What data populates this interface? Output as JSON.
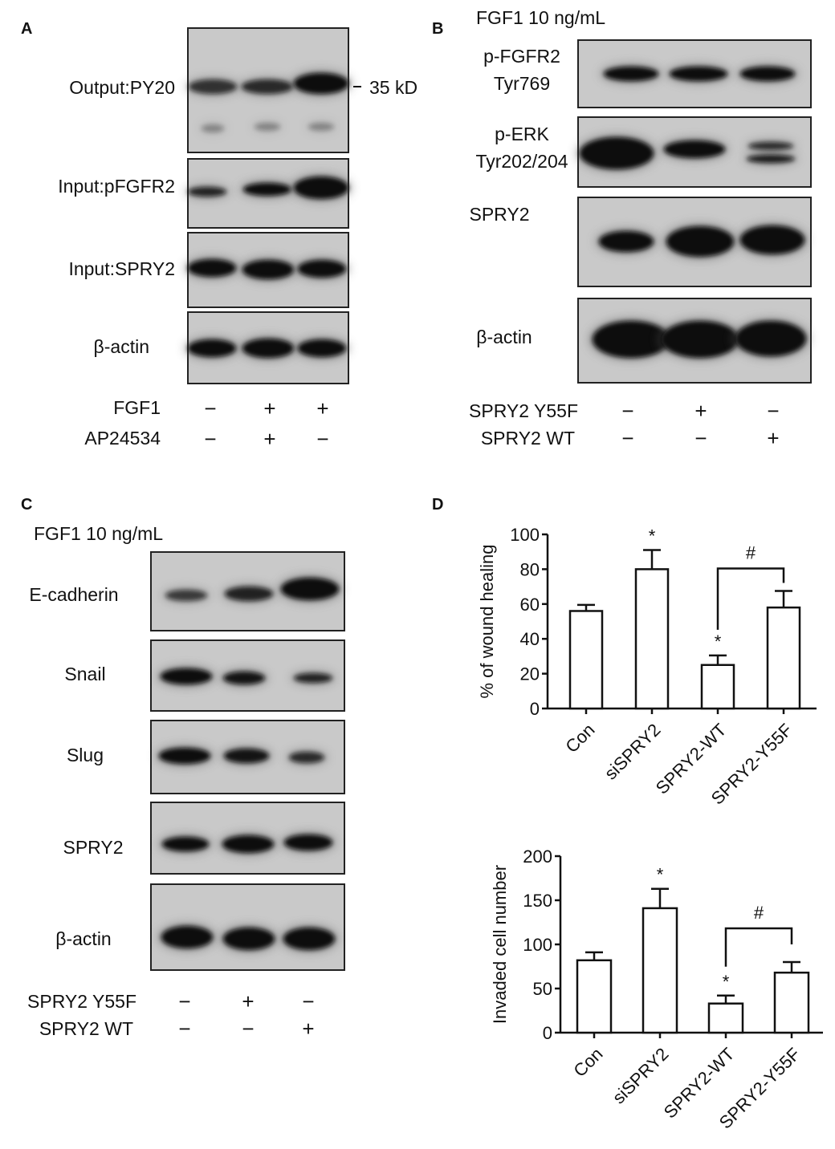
{
  "panels": {
    "A": {
      "label": "A",
      "rows": [
        "Output:PY20",
        "Input:pFGFR2",
        "Input:SPRY2",
        "β-actin"
      ],
      "marker": "35 kD",
      "conditions": [
        {
          "name": "FGF1",
          "signs": [
            "−",
            "+",
            "+"
          ]
        },
        {
          "name": "AP24534",
          "signs": [
            "−",
            "+",
            "−"
          ]
        }
      ]
    },
    "B": {
      "label": "B",
      "treatment": "FGF1 10 ng/mL",
      "rows": [
        [
          "p-FGFR2",
          "Tyr769"
        ],
        [
          "p-ERK",
          "Tyr202/204"
        ],
        [
          "SPRY2"
        ],
        [
          "β-actin"
        ]
      ],
      "conditions": [
        {
          "name": "SPRY2 Y55F",
          "signs": [
            "−",
            "+",
            "−"
          ]
        },
        {
          "name": "SPRY2 WT",
          "signs": [
            "−",
            "−",
            "+"
          ]
        }
      ]
    },
    "C": {
      "label": "C",
      "treatment": "FGF1 10 ng/mL",
      "rows": [
        "E-cadherin",
        "Snail",
        "Slug",
        "SPRY2",
        "β-actin"
      ],
      "conditions": [
        {
          "name": "SPRY2 Y55F",
          "signs": [
            "−",
            "+",
            "−"
          ]
        },
        {
          "name": "SPRY2 WT",
          "signs": [
            "−",
            "−",
            "+"
          ]
        }
      ]
    },
    "D": {
      "label": "D"
    }
  },
  "chart_data": [
    {
      "type": "bar",
      "categories": [
        "Con",
        "siSPRY2",
        "SPRY2-WT",
        "SPRY2-Y55F"
      ],
      "values": [
        56,
        80,
        25,
        58
      ],
      "errors": [
        3.5,
        11,
        5.5,
        9.5
      ],
      "annotations": [
        "",
        "*",
        "*",
        ""
      ],
      "bracket": {
        "from": 2,
        "to": 3,
        "label": "#"
      },
      "ylabel": "% of wound healing",
      "ylim": [
        0,
        100
      ],
      "yticks": [
        "0",
        "20",
        "40",
        "60",
        "80",
        "100"
      ],
      "grid": false
    },
    {
      "type": "bar",
      "categories": [
        "Con",
        "siSPRY2",
        "SPRY2-WT",
        "SPRY2-Y55F"
      ],
      "values": [
        82,
        141,
        33,
        68
      ],
      "errors": [
        9,
        22,
        9,
        12
      ],
      "annotations": [
        "",
        "*",
        "*",
        ""
      ],
      "bracket": {
        "from": 2,
        "to": 3,
        "label": "#"
      },
      "ylabel": "Invaded cell number",
      "ylim": [
        0,
        200
      ],
      "yticks": [
        "0",
        "50",
        "100",
        "150",
        "200"
      ],
      "grid": false
    }
  ]
}
